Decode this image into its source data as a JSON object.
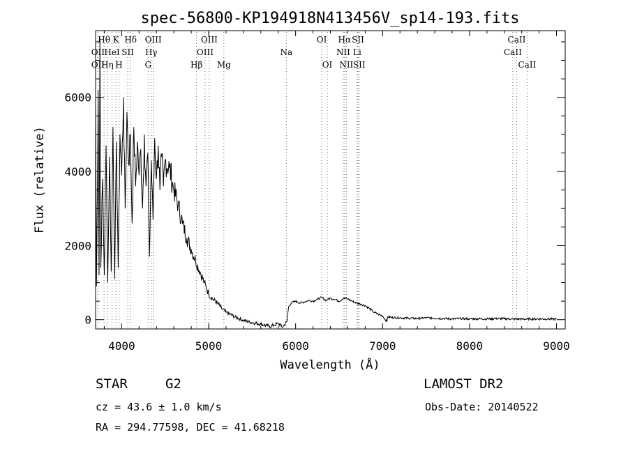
{
  "chart_data": {
    "type": "line",
    "title": "spec-56800-KP194918N413456V_sp14-193.fits",
    "xlabel": "Wavelength (Å)",
    "ylabel": "Flux (relative)",
    "xlim": [
      3700,
      9100
    ],
    "ylim": [
      -250,
      7800
    ],
    "xticks": [
      4000,
      5000,
      6000,
      7000,
      8000,
      9000
    ],
    "yticks": [
      0,
      2000,
      4000,
      6000
    ],
    "grid": false,
    "series": [
      {
        "x": [
          3700,
          3710,
          3720,
          3730,
          3740,
          3750,
          3760,
          3780,
          3800,
          3820,
          3840,
          3860,
          3880,
          3900,
          3920,
          3940,
          3960,
          3980,
          4000,
          4020,
          4040,
          4060,
          4080,
          4100,
          4120,
          4140,
          4160,
          4180,
          4200,
          4220,
          4240,
          4260,
          4280,
          4300,
          4320,
          4340,
          4360,
          4380,
          4400,
          4420,
          4440,
          4460,
          4480,
          4500,
          4550,
          4600,
          4650,
          4700,
          4750,
          4800,
          4850,
          4900,
          4950,
          5000,
          5050,
          5100,
          5150,
          5200,
          5300,
          5400,
          5500,
          5600,
          5700,
          5750,
          5800,
          5850,
          5900,
          5920,
          5950,
          6000,
          6050,
          6100,
          6150,
          6200,
          6250,
          6300,
          6350,
          6400,
          6450,
          6500,
          6550,
          6600,
          6650,
          6700,
          6750,
          6800,
          6850,
          6900,
          6950,
          7000,
          7050,
          7060,
          7100,
          7200,
          7300,
          7400,
          7500,
          7600,
          7700,
          7800,
          7900,
          8000,
          8100,
          8200,
          8300,
          8400,
          8500,
          8600,
          8700,
          8800,
          8900,
          9000
        ],
        "y": [
          5800,
          900,
          3500,
          6200,
          1200,
          7600,
          1400,
          3800,
          1200,
          4700,
          1000,
          4400,
          1300,
          5200,
          1100,
          4800,
          1400,
          5000,
          3900,
          6000,
          3000,
          5600,
          4200,
          5000,
          2600,
          5200,
          3600,
          4800,
          3900,
          4600,
          3000,
          5000,
          3600,
          4500,
          1700,
          4300,
          2700,
          4900,
          3800,
          4700,
          3500,
          4400,
          3600,
          4300,
          4100,
          3500,
          3100,
          2600,
          2200,
          1900,
          1600,
          1300,
          1000,
          700,
          550,
          450,
          300,
          200,
          80,
          -20,
          -80,
          -120,
          -180,
          -150,
          -100,
          -200,
          -50,
          350,
          450,
          500,
          450,
          480,
          520,
          500,
          550,
          600,
          520,
          580,
          550,
          500,
          580,
          560,
          500,
          450,
          420,
          380,
          300,
          200,
          150,
          100,
          -50,
          80,
          60,
          50,
          40,
          30,
          50,
          40,
          30,
          20,
          30,
          20,
          25,
          20,
          30,
          25,
          20,
          15,
          20,
          20,
          20,
          15
        ]
      }
    ],
    "line_ids": [
      {
        "label": "Hθ",
        "x": 3797,
        "row": 0
      },
      {
        "label": "K",
        "x": 3934,
        "row": 0
      },
      {
        "label": "Hδ",
        "x": 4102,
        "row": 0
      },
      {
        "label": "OIII",
        "x": 4363,
        "row": 0
      },
      {
        "label": "OIII",
        "x": 5007,
        "row": 0
      },
      {
        "label": "OI",
        "x": 6300,
        "row": 0
      },
      {
        "label": "Hα",
        "x": 6563,
        "row": 0
      },
      {
        "label": "SII",
        "x": 6717,
        "row": 0
      },
      {
        "label": "CaII",
        "x": 8542,
        "row": 0
      },
      {
        "label": "OII",
        "x": 3727,
        "row": 1
      },
      {
        "label": "HeI",
        "x": 3889,
        "row": 1
      },
      {
        "label": "SII",
        "x": 4070,
        "row": 1
      },
      {
        "label": "Hγ",
        "x": 4340,
        "row": 1
      },
      {
        "label": "OIII",
        "x": 4959,
        "row": 1
      },
      {
        "label": "Na",
        "x": 5893,
        "row": 1
      },
      {
        "label": "NII",
        "x": 6548,
        "row": 1
      },
      {
        "label": "Li",
        "x": 6708,
        "row": 1
      },
      {
        "label": "CaII",
        "x": 8498,
        "row": 1
      },
      {
        "label": "OII",
        "x": 3727,
        "row": 2
      },
      {
        "label": "Hη",
        "x": 3835,
        "row": 2
      },
      {
        "label": "H",
        "x": 3969,
        "row": 2
      },
      {
        "label": "G",
        "x": 4304,
        "row": 2
      },
      {
        "label": "Hβ",
        "x": 4861,
        "row": 2
      },
      {
        "label": "Mg",
        "x": 5175,
        "row": 2
      },
      {
        "label": "OI",
        "x": 6364,
        "row": 2
      },
      {
        "label": "NII",
        "x": 6583,
        "row": 2
      },
      {
        "label": "SII",
        "x": 6731,
        "row": 2
      },
      {
        "label": "CaII",
        "x": 8662,
        "row": 2
      }
    ]
  },
  "info": {
    "object_class": "STAR",
    "subclass": "G2",
    "survey": "LAMOST DR2",
    "cz": "cz = 43.6 ± 1.0 km/s",
    "obs_date": "Obs-Date: 20140522",
    "coords": "RA = 294.77598, DEC =  41.68218"
  }
}
